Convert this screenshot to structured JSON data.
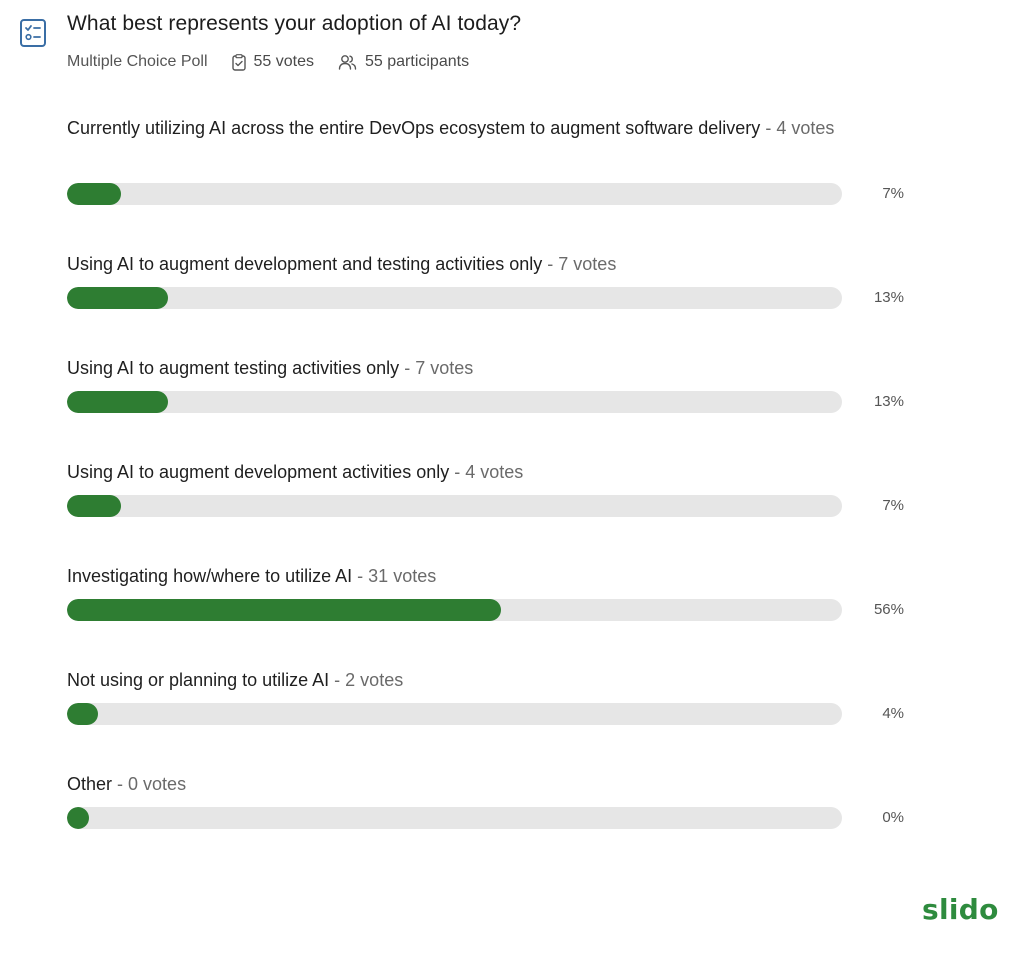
{
  "poll": {
    "title": "What best represents your adoption of AI today?",
    "type_label": "Multiple Choice Poll",
    "votes_label": "55 votes",
    "participants_label": "55 participants",
    "accent_color": "#2e7d32",
    "icons": {
      "poll": "checklist-icon",
      "votes": "ballot-icon",
      "participants": "people-icon"
    }
  },
  "options": [
    {
      "label": "Currently utilizing AI across the entire DevOps ecosystem to augment software delivery",
      "votes_text": "4 votes",
      "percent_text": "7%",
      "percent": 7
    },
    {
      "label": "Using AI to augment development and testing activities only",
      "votes_text": "7 votes",
      "percent_text": "13%",
      "percent": 13
    },
    {
      "label": "Using AI to augment testing activities only",
      "votes_text": "7 votes",
      "percent_text": "13%",
      "percent": 13
    },
    {
      "label": "Using AI to augment development activities only",
      "votes_text": "4 votes",
      "percent_text": "7%",
      "percent": 7
    },
    {
      "label": "Investigating how/where to utilize AI",
      "votes_text": "31 votes",
      "percent_text": "56%",
      "percent": 56
    },
    {
      "label": "Not using or planning to utilize AI",
      "votes_text": "2 votes",
      "percent_text": "4%",
      "percent": 4
    },
    {
      "label": "Other",
      "votes_text": "0 votes",
      "percent_text": "0%",
      "percent": 0
    }
  ],
  "brand": {
    "name": "slido",
    "color": "#2e8b3e"
  }
}
